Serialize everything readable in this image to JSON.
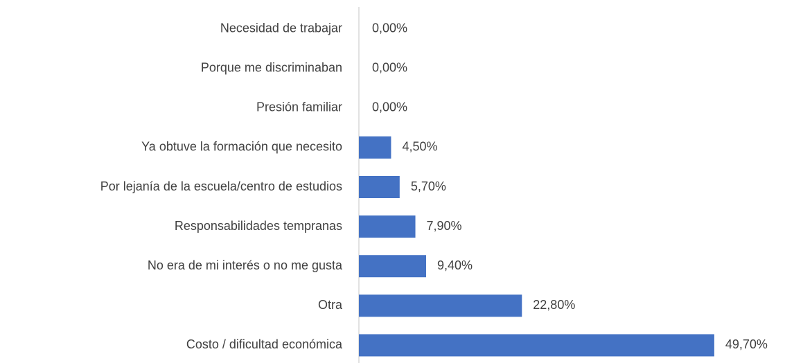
{
  "chart_data": {
    "type": "bar",
    "orientation": "horizontal",
    "categories": [
      "Necesidad de trabajar",
      "Porque me discriminaban",
      "Presión familiar",
      "Ya obtuve la formación que necesito",
      "Por lejanía de la escuela/centro de estudios",
      "Responsabilidades tempranas",
      "No era de mi interés o no me gusta",
      "Otra",
      "Costo / dificultad económica"
    ],
    "values": [
      0,
      0,
      0,
      4.5,
      5.7,
      7.9,
      9.4,
      22.8,
      49.7
    ],
    "value_labels": [
      "0,00%",
      "0,00%",
      "0,00%",
      "4,50%",
      "5,70%",
      "7,90%",
      "9,40%",
      "22,80%",
      "49,70%"
    ],
    "color": "#4472c4",
    "xlim": [
      0,
      50
    ]
  }
}
